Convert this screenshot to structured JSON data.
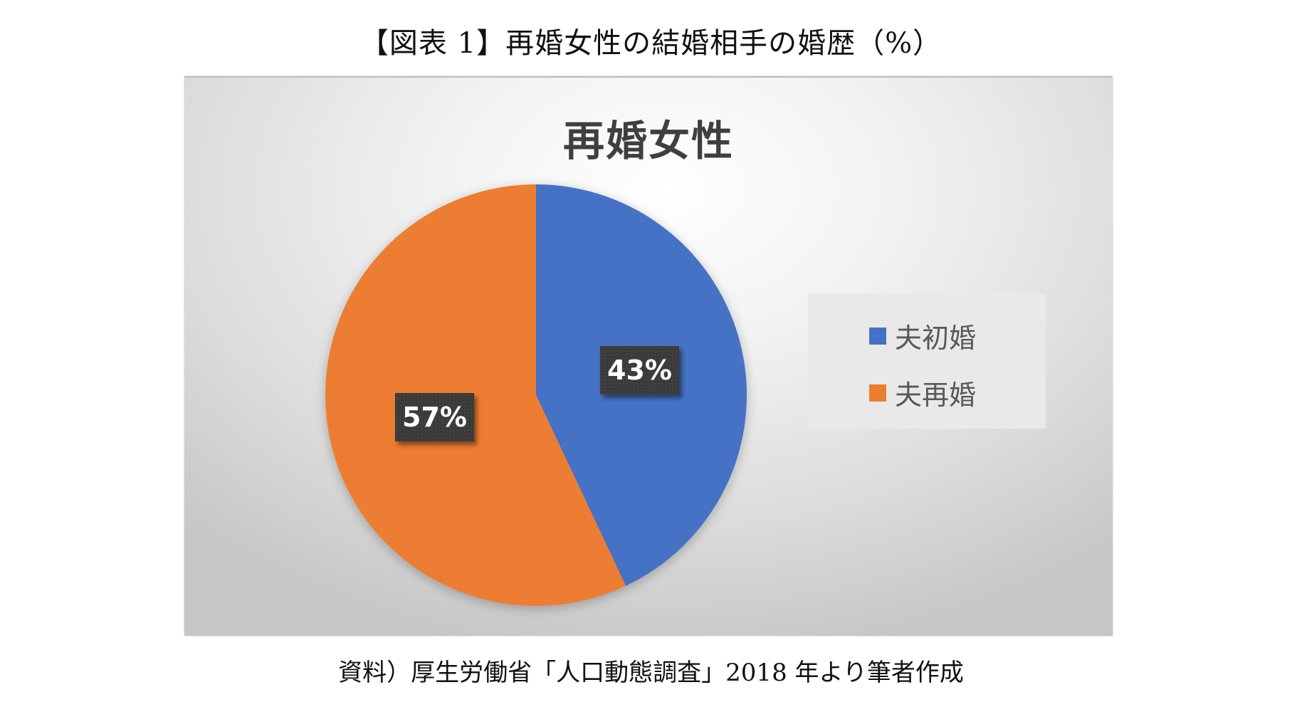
{
  "figure": {
    "title": "【図表 1】再婚女性の結婚相手の婚歴（%）",
    "source": "資料）厚生労働省「人口動態調査」2018 年より筆者作成"
  },
  "chart_data": {
    "type": "pie",
    "title": "再婚女性",
    "categories": [
      "夫初婚",
      "夫再婚"
    ],
    "values": [
      43,
      57
    ],
    "labels": [
      "43%",
      "57%"
    ],
    "colors": [
      "#4472C4",
      "#ED7D31"
    ],
    "start_angle": "12 o'clock, clockwise",
    "legend_position": "right",
    "unit": "%"
  },
  "legend": {
    "items": [
      {
        "label": "夫初婚",
        "color": "#4472C4"
      },
      {
        "label": "夫再婚",
        "color": "#ED7D31"
      }
    ]
  }
}
